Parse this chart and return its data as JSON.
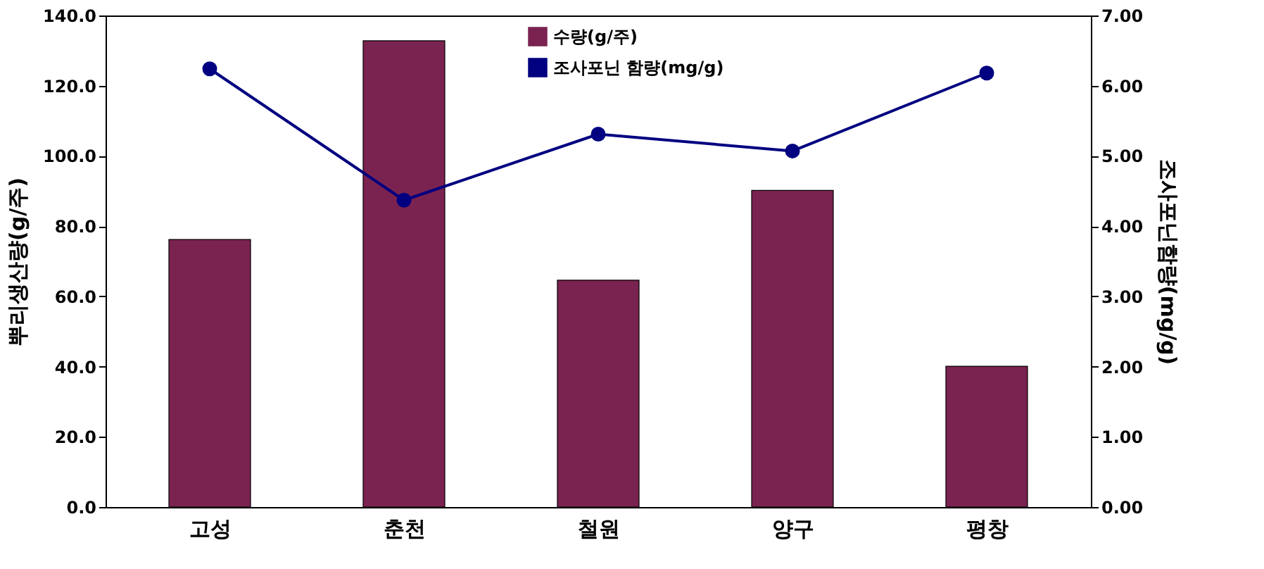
{
  "chart_data": {
    "type": "bar",
    "categories": [
      "고성",
      "춘천",
      "철원",
      "양구",
      "평창"
    ],
    "ylabel": "뿌리생산량(g/주)",
    "y2label": "조사포닌함량(mg/g)",
    "series": [
      {
        "name": "수량(g/주)",
        "color": "#7a2350",
        "values": [
          76.2,
          132.8,
          64.6,
          90.2,
          40.1
        ]
      },
      {
        "name": "조사포닌 함량(mg/g)",
        "type": "line",
        "axis": "y2",
        "color": "#000080",
        "marker": "circle",
        "values": [
          6.24,
          4.37,
          5.31,
          5.07,
          6.18
        ]
      }
    ],
    "ylim": [
      0,
      140
    ],
    "yticks": [
      {
        "value": 0,
        "label": "0.0"
      },
      {
        "value": 20,
        "label": "20.0"
      },
      {
        "value": 40,
        "label": "40.0"
      },
      {
        "value": 60,
        "label": "60.0"
      },
      {
        "value": 80,
        "label": "80.0"
      },
      {
        "value": 100,
        "label": "100.0"
      },
      {
        "value": 120,
        "label": "120.0"
      },
      {
        "value": 140,
        "label": "140.0"
      }
    ],
    "y2lim": [
      0,
      7
    ],
    "y2ticks": [
      {
        "value": 0,
        "label": "0.00"
      },
      {
        "value": 1,
        "label": "1.00"
      },
      {
        "value": 2,
        "label": "2.00"
      },
      {
        "value": 3,
        "label": "3.00"
      },
      {
        "value": 4,
        "label": "4.00"
      },
      {
        "value": 5,
        "label": "5.00"
      },
      {
        "value": 6,
        "label": "6.00"
      },
      {
        "value": 7,
        "label": "7.00"
      }
    ],
    "grid": false,
    "legend": "top"
  }
}
